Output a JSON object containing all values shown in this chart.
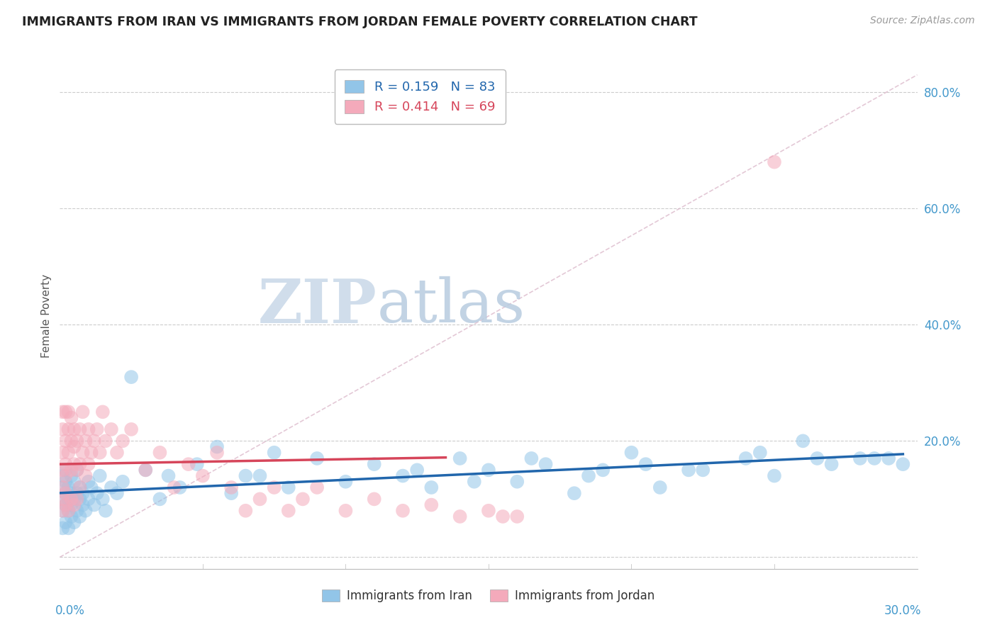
{
  "title": "IMMIGRANTS FROM IRAN VS IMMIGRANTS FROM JORDAN FEMALE POVERTY CORRELATION CHART",
  "source_text": "Source: ZipAtlas.com",
  "ylabel": "Female Poverty",
  "xlim": [
    0.0,
    0.3
  ],
  "ylim": [
    -0.02,
    0.85
  ],
  "legend_iran": "Immigrants from Iran",
  "legend_jordan": "Immigrants from Jordan",
  "r_iran": "0.159",
  "n_iran": "83",
  "r_jordan": "0.414",
  "n_jordan": "69",
  "color_iran": "#92C5E8",
  "color_jordan": "#F4AABB",
  "trendline_iran_color": "#2166AC",
  "trendline_jordan_color": "#D6455A",
  "background_color": "#FFFFFF",
  "watermark_zip": "ZIP",
  "watermark_atlas": "atlas",
  "iran_x": [
    0.001,
    0.001,
    0.001,
    0.001,
    0.001,
    0.002,
    0.002,
    0.002,
    0.002,
    0.002,
    0.003,
    0.003,
    0.003,
    0.003,
    0.004,
    0.004,
    0.004,
    0.004,
    0.005,
    0.005,
    0.005,
    0.006,
    0.006,
    0.006,
    0.007,
    0.007,
    0.007,
    0.008,
    0.008,
    0.009,
    0.01,
    0.01,
    0.011,
    0.012,
    0.013,
    0.014,
    0.015,
    0.016,
    0.018,
    0.02,
    0.022,
    0.025,
    0.03,
    0.035,
    0.038,
    0.042,
    0.048,
    0.055,
    0.06,
    0.065,
    0.07,
    0.075,
    0.08,
    0.09,
    0.1,
    0.11,
    0.12,
    0.13,
    0.14,
    0.15,
    0.16,
    0.17,
    0.18,
    0.19,
    0.2,
    0.21,
    0.22,
    0.24,
    0.25,
    0.26,
    0.27,
    0.28,
    0.29,
    0.295,
    0.125,
    0.145,
    0.165,
    0.185,
    0.205,
    0.225,
    0.245,
    0.265,
    0.285
  ],
  "iran_y": [
    0.12,
    0.08,
    0.05,
    0.1,
    0.14,
    0.09,
    0.13,
    0.06,
    0.11,
    0.15,
    0.08,
    0.12,
    0.1,
    0.05,
    0.11,
    0.07,
    0.14,
    0.09,
    0.1,
    0.13,
    0.06,
    0.11,
    0.08,
    0.15,
    0.1,
    0.07,
    0.12,
    0.09,
    0.11,
    0.08,
    0.1,
    0.13,
    0.12,
    0.09,
    0.11,
    0.14,
    0.1,
    0.08,
    0.12,
    0.11,
    0.13,
    0.31,
    0.15,
    0.1,
    0.14,
    0.12,
    0.16,
    0.19,
    0.11,
    0.14,
    0.14,
    0.18,
    0.12,
    0.17,
    0.13,
    0.16,
    0.14,
    0.12,
    0.17,
    0.15,
    0.13,
    0.16,
    0.11,
    0.15,
    0.18,
    0.12,
    0.15,
    0.17,
    0.14,
    0.2,
    0.16,
    0.17,
    0.17,
    0.16,
    0.15,
    0.13,
    0.17,
    0.14,
    0.16,
    0.15,
    0.18,
    0.17,
    0.17
  ],
  "jordan_x": [
    0.001,
    0.001,
    0.001,
    0.001,
    0.001,
    0.001,
    0.001,
    0.002,
    0.002,
    0.002,
    0.002,
    0.002,
    0.002,
    0.003,
    0.003,
    0.003,
    0.003,
    0.004,
    0.004,
    0.004,
    0.004,
    0.005,
    0.005,
    0.005,
    0.005,
    0.006,
    0.006,
    0.006,
    0.007,
    0.007,
    0.007,
    0.008,
    0.008,
    0.009,
    0.009,
    0.01,
    0.01,
    0.011,
    0.012,
    0.013,
    0.014,
    0.015,
    0.016,
    0.018,
    0.02,
    0.022,
    0.025,
    0.03,
    0.035,
    0.04,
    0.045,
    0.05,
    0.055,
    0.06,
    0.065,
    0.07,
    0.075,
    0.08,
    0.085,
    0.09,
    0.1,
    0.11,
    0.12,
    0.13,
    0.14,
    0.15,
    0.155,
    0.16,
    0.25
  ],
  "jordan_y": [
    0.1,
    0.15,
    0.18,
    0.22,
    0.25,
    0.08,
    0.12,
    0.14,
    0.2,
    0.16,
    0.25,
    0.09,
    0.11,
    0.18,
    0.22,
    0.08,
    0.25,
    0.15,
    0.2,
    0.24,
    0.1,
    0.16,
    0.19,
    0.22,
    0.09,
    0.15,
    0.2,
    0.1,
    0.16,
    0.22,
    0.12,
    0.18,
    0.25,
    0.14,
    0.2,
    0.16,
    0.22,
    0.18,
    0.2,
    0.22,
    0.18,
    0.25,
    0.2,
    0.22,
    0.18,
    0.2,
    0.22,
    0.15,
    0.18,
    0.12,
    0.16,
    0.14,
    0.18,
    0.12,
    0.08,
    0.1,
    0.12,
    0.08,
    0.1,
    0.12,
    0.08,
    0.1,
    0.08,
    0.09,
    0.07,
    0.08,
    0.07,
    0.07,
    0.68
  ]
}
